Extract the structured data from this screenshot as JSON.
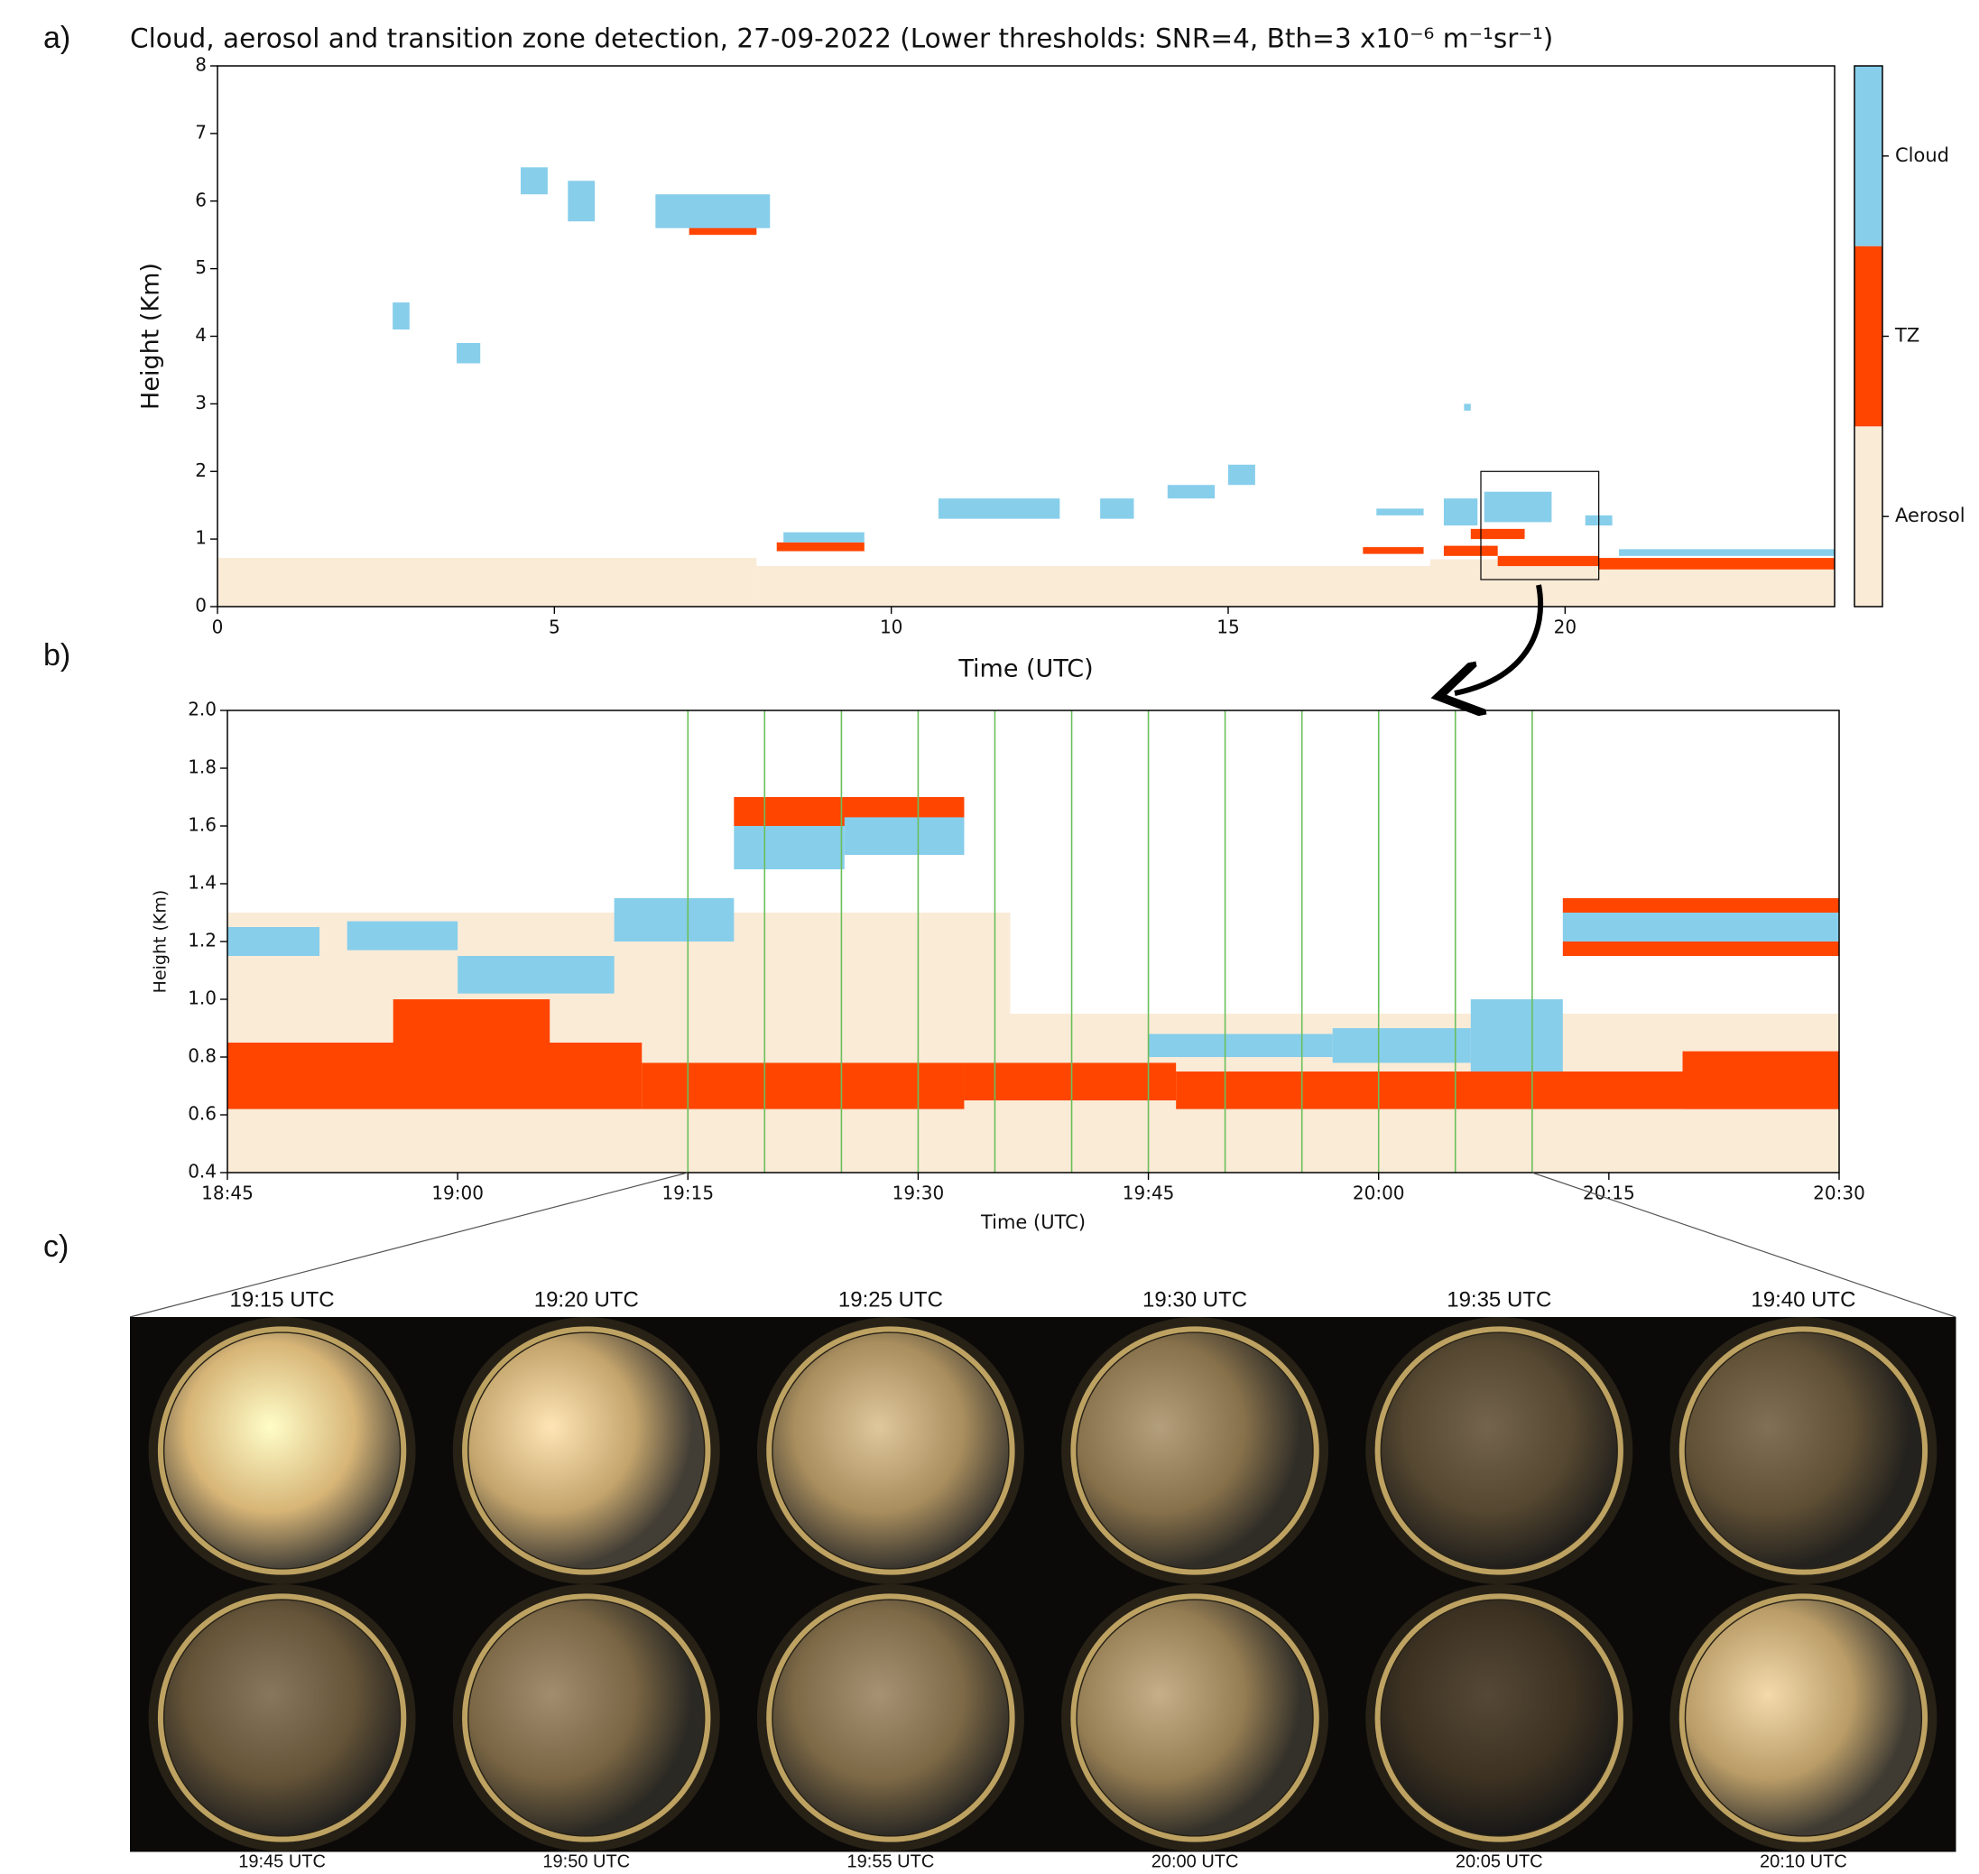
{
  "panel_labels": {
    "a": "a)",
    "b": "b)",
    "c": "c)"
  },
  "chart_data": [
    {
      "type": "heatmap",
      "title": "Cloud, aerosol and transition zone detection, 27-09-2022 (Lower thresholds: SNR=4, Bth=3 x10⁻⁶ m⁻¹sr⁻¹)",
      "x_label": "Time (UTC)",
      "y_label": "Height (Km)",
      "xlim": [
        0,
        24
      ],
      "xticks": [
        0,
        5,
        10,
        15,
        20
      ],
      "ylim": [
        0,
        8
      ],
      "yticks": [
        0,
        1,
        2,
        3,
        4,
        5,
        6,
        7,
        8
      ],
      "series": [
        {
          "name": "Aerosol",
          "color": "#faebd7",
          "x0": [
            0,
            8,
            18
          ],
          "x1": [
            8,
            18,
            24
          ],
          "y0": [
            0,
            0,
            0
          ],
          "y1": [
            0.72,
            0.6,
            0.7
          ]
        },
        {
          "name": "TZ",
          "color": "#ff4500",
          "x0": [
            8.3,
            17.0,
            18.2,
            19.0,
            20.5,
            7.0,
            18.6
          ],
          "x1": [
            9.6,
            17.9,
            19.0,
            20.5,
            24,
            8.0,
            19.4
          ],
          "y0": [
            0.82,
            0.78,
            0.75,
            0.6,
            0.55,
            5.5,
            1.0
          ],
          "y1": [
            0.95,
            0.88,
            0.9,
            0.75,
            0.72,
            5.9,
            1.15
          ]
        },
        {
          "name": "Cloud",
          "color": "#87ceeb",
          "x0": [
            2.6,
            3.55,
            4.5,
            5.2,
            6.5,
            8.4,
            10.7,
            13.1,
            14.1,
            15.0,
            17.2,
            18.2,
            18.8,
            20.3,
            20.8,
            18.5
          ],
          "x1": [
            2.85,
            3.9,
            4.9,
            5.6,
            8.2,
            9.6,
            12.5,
            13.6,
            14.8,
            15.4,
            17.9,
            18.7,
            19.8,
            20.7,
            24,
            18.6
          ],
          "y0": [
            4.1,
            3.6,
            6.1,
            5.7,
            5.6,
            0.95,
            1.3,
            1.3,
            1.6,
            1.8,
            1.35,
            1.2,
            1.25,
            1.2,
            0.75,
            2.9
          ],
          "y1": [
            4.5,
            3.9,
            6.5,
            6.3,
            6.1,
            1.1,
            1.6,
            1.6,
            1.8,
            2.1,
            1.45,
            1.6,
            1.7,
            1.35,
            0.85,
            3.0
          ]
        }
      ]
    },
    {
      "type": "heatmap",
      "x_label": "Time (UTC)",
      "y_label": "Height (Km)",
      "xlim": [
        18.75,
        20.5
      ],
      "xticks": [
        {
          "value": 18.75,
          "label": "18:45"
        },
        {
          "value": 19.0,
          "label": "19:00"
        },
        {
          "value": 19.25,
          "label": "19:15"
        },
        {
          "value": 19.5,
          "label": "19:30"
        },
        {
          "value": 19.75,
          "label": "19:45"
        },
        {
          "value": 20.0,
          "label": "20:00"
        },
        {
          "value": 20.25,
          "label": "20:15"
        },
        {
          "value": 20.5,
          "label": "20:30"
        }
      ],
      "ylim": [
        0.4,
        2.0
      ],
      "yticks": [
        0.4,
        0.6,
        0.8,
        {
          "value": 1.0,
          "label": "1.0"
        },
        1.2,
        1.4,
        1.6,
        1.8,
        {
          "value": 2.0,
          "label": "2.0"
        }
      ],
      "vlines": [
        19.25,
        19.3333,
        19.4167,
        19.5,
        19.5833,
        19.6667,
        19.75,
        19.8333,
        19.9167,
        20.0,
        20.0833,
        20.1667
      ],
      "vline_color": "#6abf5a",
      "series": [
        {
          "name": "Aerosol",
          "color": "#faebd7",
          "x0": [
            18.75,
            18.75
          ],
          "x1": [
            20.5,
            19.6
          ],
          "y0": [
            0.4,
            0.95
          ],
          "y1": [
            0.95,
            1.3
          ]
        },
        {
          "name": "TZ",
          "color": "#ff4500",
          "x0": [
            18.75,
            18.93,
            19.2,
            19.55,
            19.78,
            20.33,
            19.3,
            20.2,
            20.2
          ],
          "x1": [
            19.2,
            19.1,
            19.55,
            19.78,
            20.5,
            20.5,
            19.55,
            20.5,
            20.5
          ],
          "y0": [
            0.62,
            0.85,
            0.62,
            0.65,
            0.62,
            0.62,
            1.6,
            1.15,
            1.3
          ],
          "y1": [
            0.85,
            1.0,
            0.78,
            0.78,
            0.75,
            0.82,
            1.7,
            1.2,
            1.35
          ]
        },
        {
          "name": "Cloud",
          "color": "#87ceeb",
          "x0": [
            18.75,
            18.88,
            19.0,
            19.17,
            19.3,
            19.42,
            19.75,
            19.95,
            20.1,
            20.2
          ],
          "x1": [
            18.85,
            19.0,
            19.17,
            19.3,
            19.42,
            19.55,
            19.95,
            20.1,
            20.2,
            20.5
          ],
          "y0": [
            1.15,
            1.17,
            1.02,
            1.2,
            1.45,
            1.5,
            0.8,
            0.78,
            0.75,
            1.2
          ],
          "y1": [
            1.25,
            1.27,
            1.15,
            1.35,
            1.6,
            1.63,
            0.88,
            0.9,
            1.0,
            1.3
          ]
        }
      ]
    }
  ],
  "sky_images": {
    "top": [
      "19:15 UTC",
      "19:20 UTC",
      "19:25 UTC",
      "19:30 UTC",
      "19:35 UTC",
      "19:40 UTC"
    ],
    "bottom": [
      "19:45 UTC",
      "19:50 UTC",
      "19:55 UTC",
      "20:00 UTC",
      "20:05 UTC",
      "20:10 UTC"
    ]
  }
}
